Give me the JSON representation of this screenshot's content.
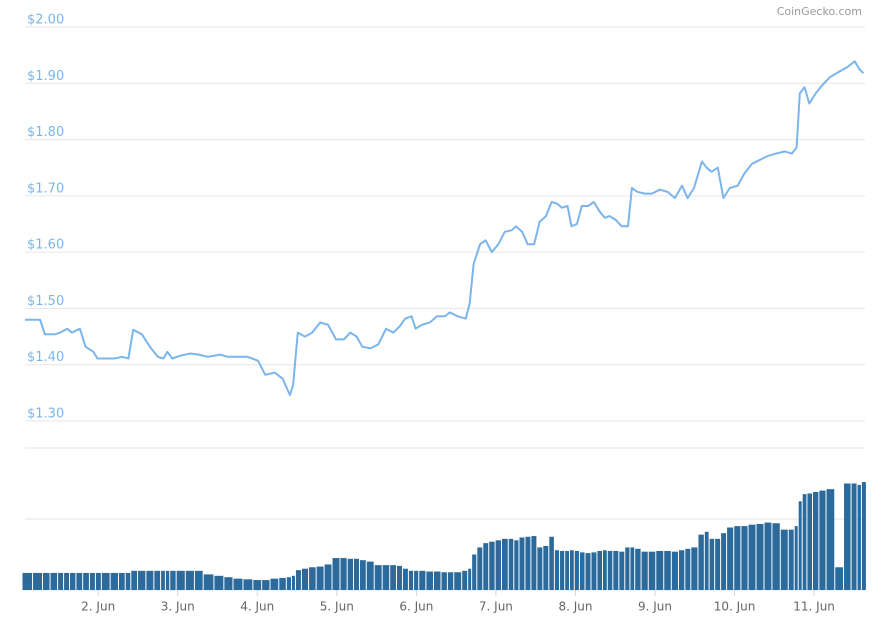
{
  "chart_data": {
    "type": "line",
    "credit": "CoinGecko.com",
    "x": [
      1.08,
      1.27,
      1.33,
      1.46,
      1.52,
      1.61,
      1.67,
      1.77,
      1.84,
      1.94,
      1.99,
      2.09,
      2.21,
      2.3,
      2.38,
      2.44,
      2.55,
      2.65,
      2.75,
      2.82,
      2.87,
      2.93,
      3.03,
      3.16,
      3.26,
      3.38,
      3.53,
      3.63,
      3.76,
      3.88,
      4.01,
      4.1,
      4.22,
      4.32,
      4.41,
      4.45,
      4.51,
      4.6,
      4.69,
      4.79,
      4.89,
      4.99,
      5.09,
      5.17,
      5.25,
      5.32,
      5.42,
      5.52,
      5.62,
      5.71,
      5.79,
      5.86,
      5.94,
      5.99,
      6.07,
      6.17,
      6.26,
      6.36,
      6.42,
      6.52,
      6.62,
      6.67,
      6.72,
      6.8,
      6.87,
      6.95,
      7.03,
      7.11,
      7.2,
      7.25,
      7.33,
      7.4,
      7.48,
      7.55,
      7.63,
      7.7,
      7.77,
      7.83,
      7.9,
      7.95,
      8.02,
      8.08,
      8.16,
      8.23,
      8.31,
      8.37,
      8.43,
      8.51,
      8.58,
      8.66,
      8.71,
      8.78,
      8.87,
      8.96,
      9.06,
      9.16,
      9.25,
      9.34,
      9.41,
      9.49,
      9.59,
      9.65,
      9.71,
      9.79,
      9.86,
      9.94,
      10.04,
      10.12,
      10.22,
      10.32,
      10.42,
      10.52,
      10.63,
      10.72,
      10.78,
      10.82,
      10.88,
      10.94,
      11.02,
      11.1,
      11.2,
      11.32,
      11.42,
      11.51,
      11.57,
      11.62
    ],
    "xlim": [
      1.08,
      11.64
    ],
    "xticks": [
      {
        "value": 2,
        "label": "2. Jun"
      },
      {
        "value": 3,
        "label": "3. Jun"
      },
      {
        "value": 4,
        "label": "4. Jun"
      },
      {
        "value": 5,
        "label": "5. Jun"
      },
      {
        "value": 6,
        "label": "6. Jun"
      },
      {
        "value": 7,
        "label": "7. Jun"
      },
      {
        "value": 8,
        "label": "8. Jun"
      },
      {
        "value": 9,
        "label": "9. Jun"
      },
      {
        "value": 10,
        "label": "10. Jun"
      },
      {
        "value": 11,
        "label": "11. Jun"
      }
    ],
    "ylim": [
      1.3,
      2.0
    ],
    "yticks": [
      {
        "value": 1.3,
        "label": "$1.30"
      },
      {
        "value": 1.4,
        "label": "$1.40"
      },
      {
        "value": 1.5,
        "label": "$1.50"
      },
      {
        "value": 1.6,
        "label": "$1.60"
      },
      {
        "value": 1.7,
        "label": "$1.70"
      },
      {
        "value": 1.8,
        "label": "$1.80"
      },
      {
        "value": 1.9,
        "label": "$1.90"
      },
      {
        "value": 2.0,
        "label": "$2.00"
      }
    ],
    "y2lim": [
      0,
      2
    ],
    "y2ticks": [
      0,
      1,
      2
    ],
    "grid": true,
    "series": [
      {
        "color": "#7cb5ec",
        "values": [
          1.48,
          1.48,
          1.454,
          1.454,
          1.457,
          1.464,
          1.457,
          1.464,
          1.432,
          1.423,
          1.411,
          1.411,
          1.411,
          1.414,
          1.411,
          1.462,
          1.454,
          1.432,
          1.414,
          1.411,
          1.423,
          1.411,
          1.416,
          1.42,
          1.418,
          1.414,
          1.418,
          1.414,
          1.414,
          1.414,
          1.407,
          1.382,
          1.386,
          1.375,
          1.346,
          1.364,
          1.457,
          1.45,
          1.457,
          1.475,
          1.471,
          1.445,
          1.445,
          1.457,
          1.45,
          1.432,
          1.429,
          1.436,
          1.464,
          1.457,
          1.468,
          1.482,
          1.486,
          1.464,
          1.471,
          1.475,
          1.486,
          1.486,
          1.493,
          1.486,
          1.482,
          1.509,
          1.579,
          1.614,
          1.621,
          1.6,
          1.614,
          1.636,
          1.639,
          1.646,
          1.636,
          1.614,
          1.614,
          1.654,
          1.664,
          1.689,
          1.686,
          1.679,
          1.682,
          1.646,
          1.65,
          1.682,
          1.682,
          1.689,
          1.671,
          1.661,
          1.664,
          1.657,
          1.646,
          1.646,
          1.714,
          1.707,
          1.704,
          1.704,
          1.711,
          1.707,
          1.696,
          1.718,
          1.696,
          1.714,
          1.761,
          1.75,
          1.743,
          1.75,
          1.696,
          1.714,
          1.718,
          1.739,
          1.757,
          1.764,
          1.771,
          1.775,
          1.779,
          1.775,
          1.786,
          1.882,
          1.893,
          1.864,
          1.882,
          1.896,
          1.911,
          1.921,
          1.929,
          1.939,
          1.925,
          1.918
        ]
      },
      {
        "type": "bar",
        "axis": "y2",
        "color": "#2b6a9a",
        "values": [
          0.24,
          0.24,
          0.24,
          0.24,
          0.24,
          0.24,
          0.24,
          0.24,
          0.24,
          0.24,
          0.24,
          0.24,
          0.24,
          0.24,
          0.24,
          0.27,
          0.27,
          0.27,
          0.27,
          0.27,
          0.27,
          0.27,
          0.27,
          0.27,
          0.27,
          0.22,
          0.2,
          0.18,
          0.16,
          0.15,
          0.14,
          0.14,
          0.16,
          0.17,
          0.18,
          0.2,
          0.28,
          0.3,
          0.32,
          0.33,
          0.36,
          0.45,
          0.45,
          0.44,
          0.44,
          0.42,
          0.4,
          0.35,
          0.35,
          0.35,
          0.34,
          0.3,
          0.27,
          0.27,
          0.27,
          0.26,
          0.26,
          0.25,
          0.25,
          0.25,
          0.27,
          0.3,
          0.5,
          0.6,
          0.66,
          0.68,
          0.7,
          0.72,
          0.72,
          0.7,
          0.74,
          0.75,
          0.76,
          0.6,
          0.62,
          0.75,
          0.56,
          0.55,
          0.55,
          0.56,
          0.55,
          0.53,
          0.52,
          0.53,
          0.55,
          0.56,
          0.55,
          0.55,
          0.54,
          0.6,
          0.6,
          0.58,
          0.54,
          0.54,
          0.55,
          0.55,
          0.54,
          0.56,
          0.58,
          0.6,
          0.78,
          0.82,
          0.72,
          0.72,
          0.8,
          0.88,
          0.9,
          0.9,
          0.92,
          0.93,
          0.95,
          0.94,
          0.85,
          0.85,
          0.9,
          1.25,
          1.35,
          1.36,
          1.38,
          1.4,
          1.42,
          0.32,
          1.5,
          1.5,
          1.48,
          1.52
        ]
      }
    ]
  }
}
